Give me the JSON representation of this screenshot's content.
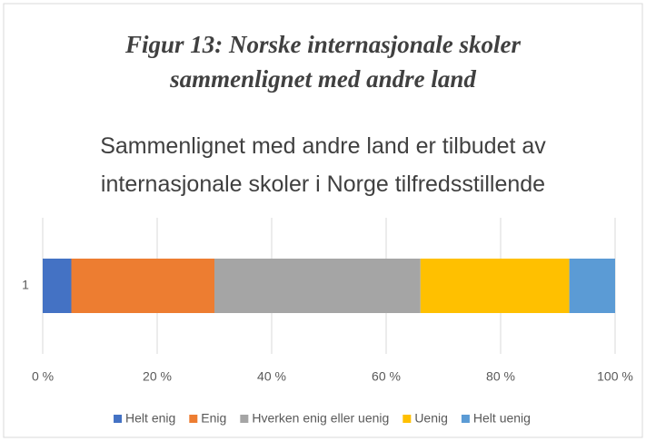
{
  "caption": "Figur 13: Norske internasjonale skoler sammenlignet med andre land",
  "chart_data": {
    "type": "stacked_barh",
    "title": "Sammenlignet med andre land er tilbudet av internasjonale skoler i Norge tilfredsstillende",
    "categories": [
      "1"
    ],
    "series": [
      {
        "name": "Helt enig",
        "color": "#4472c4",
        "values": [
          5
        ]
      },
      {
        "name": "Enig",
        "color": "#ed7d31",
        "values": [
          25
        ]
      },
      {
        "name": "Hverken enig eller uenig",
        "color": "#a5a5a5",
        "values": [
          36
        ]
      },
      {
        "name": "Uenig",
        "color": "#ffc000",
        "values": [
          26
        ]
      },
      {
        "name": "Helt uenig",
        "color": "#5b9bd5",
        "values": [
          8
        ]
      }
    ],
    "xlim": [
      0,
      100
    ],
    "xticks": [
      {
        "value": 0,
        "label": "0 %"
      },
      {
        "value": 20,
        "label": "20 %"
      },
      {
        "value": 40,
        "label": "40 %"
      },
      {
        "value": 60,
        "label": "60 %"
      },
      {
        "value": 80,
        "label": "80 %"
      },
      {
        "value": 100,
        "label": "100 %"
      }
    ],
    "grid": true,
    "legend": "bottom"
  }
}
